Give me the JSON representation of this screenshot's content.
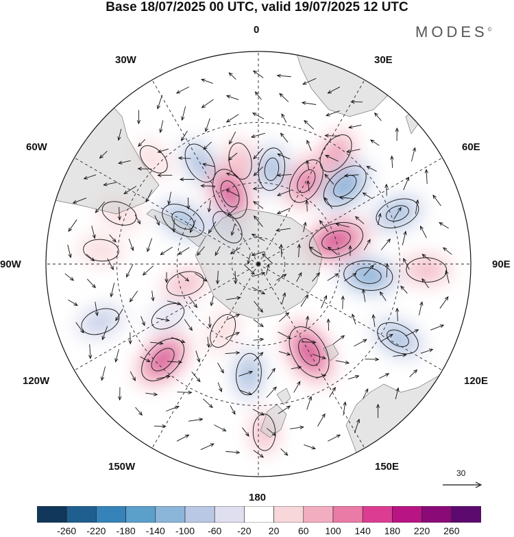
{
  "title": "Base 18/07/2025 00 UTC, valid 19/07/2025 12 UTC",
  "logo": "MODES",
  "logo_mark": "©",
  "longitude_labels": {
    "top": "0",
    "top_right": "30E",
    "upper_right": "60E",
    "right": "90E",
    "lower_right": "120E",
    "bottom_right": "150E",
    "bottom": "180",
    "bottom_left": "150W",
    "lower_left": "120W",
    "left": "90W",
    "upper_left": "60W",
    "top_left": "30W"
  },
  "reference_vector": {
    "label": "30"
  },
  "colorbar": {
    "ticks": [
      "-260",
      "-220",
      "-180",
      "-140",
      "-100",
      "-60",
      "-20",
      "20",
      "60",
      "100",
      "140",
      "180",
      "220",
      "260"
    ],
    "colors": [
      "#11375a",
      "#1f5f8f",
      "#3583b8",
      "#5b9fcb",
      "#8cb6d9",
      "#b9c8e4",
      "#dfdff0",
      "#ffffff",
      "#f8d7da",
      "#f2aec0",
      "#ea7aa6",
      "#dc3d93",
      "#b81483",
      "#8a0b78",
      "#5c0a6e"
    ]
  },
  "anomaly_cells": [
    {
      "lon": 330,
      "lat": -48,
      "value": -120
    },
    {
      "lon": 350,
      "lat": -52,
      "value": 80
    },
    {
      "lon": 8,
      "lat": -55,
      "value": -130
    },
    {
      "lon": 338,
      "lat": -62,
      "value": 200
    },
    {
      "lon": 300,
      "lat": -58,
      "value": -150
    },
    {
      "lon": 30,
      "lat": -55,
      "value": 160
    },
    {
      "lon": 35,
      "lat": -42,
      "value": 120
    },
    {
      "lon": 48,
      "lat": -48,
      "value": -190
    },
    {
      "lon": 70,
      "lat": -38,
      "value": -140
    },
    {
      "lon": 73,
      "lat": -60,
      "value": 230
    },
    {
      "lon": 96,
      "lat": -50,
      "value": -180
    },
    {
      "lon": 92,
      "lat": -32,
      "value": 110
    },
    {
      "lon": 118,
      "lat": -35,
      "value": -140
    },
    {
      "lon": 150,
      "lat": -53,
      "value": 230
    },
    {
      "lon": 185,
      "lat": -50,
      "value": -120
    },
    {
      "lon": 178,
      "lat": -32,
      "value": 80
    },
    {
      "lon": 225,
      "lat": -42,
      "value": 200
    },
    {
      "lon": 240,
      "lat": -52,
      "value": -70
    },
    {
      "lon": 255,
      "lat": -62,
      "value": 90
    },
    {
      "lon": 250,
      "lat": -32,
      "value": -100
    },
    {
      "lon": 275,
      "lat": -35,
      "value": 70
    },
    {
      "lon": 290,
      "lat": -38,
      "value": 70
    },
    {
      "lon": 315,
      "lat": -38,
      "value": 50
    },
    {
      "lon": 208,
      "lat": -62,
      "value": 70
    },
    {
      "lon": 320,
      "lat": -72,
      "value": -80
    }
  ]
}
